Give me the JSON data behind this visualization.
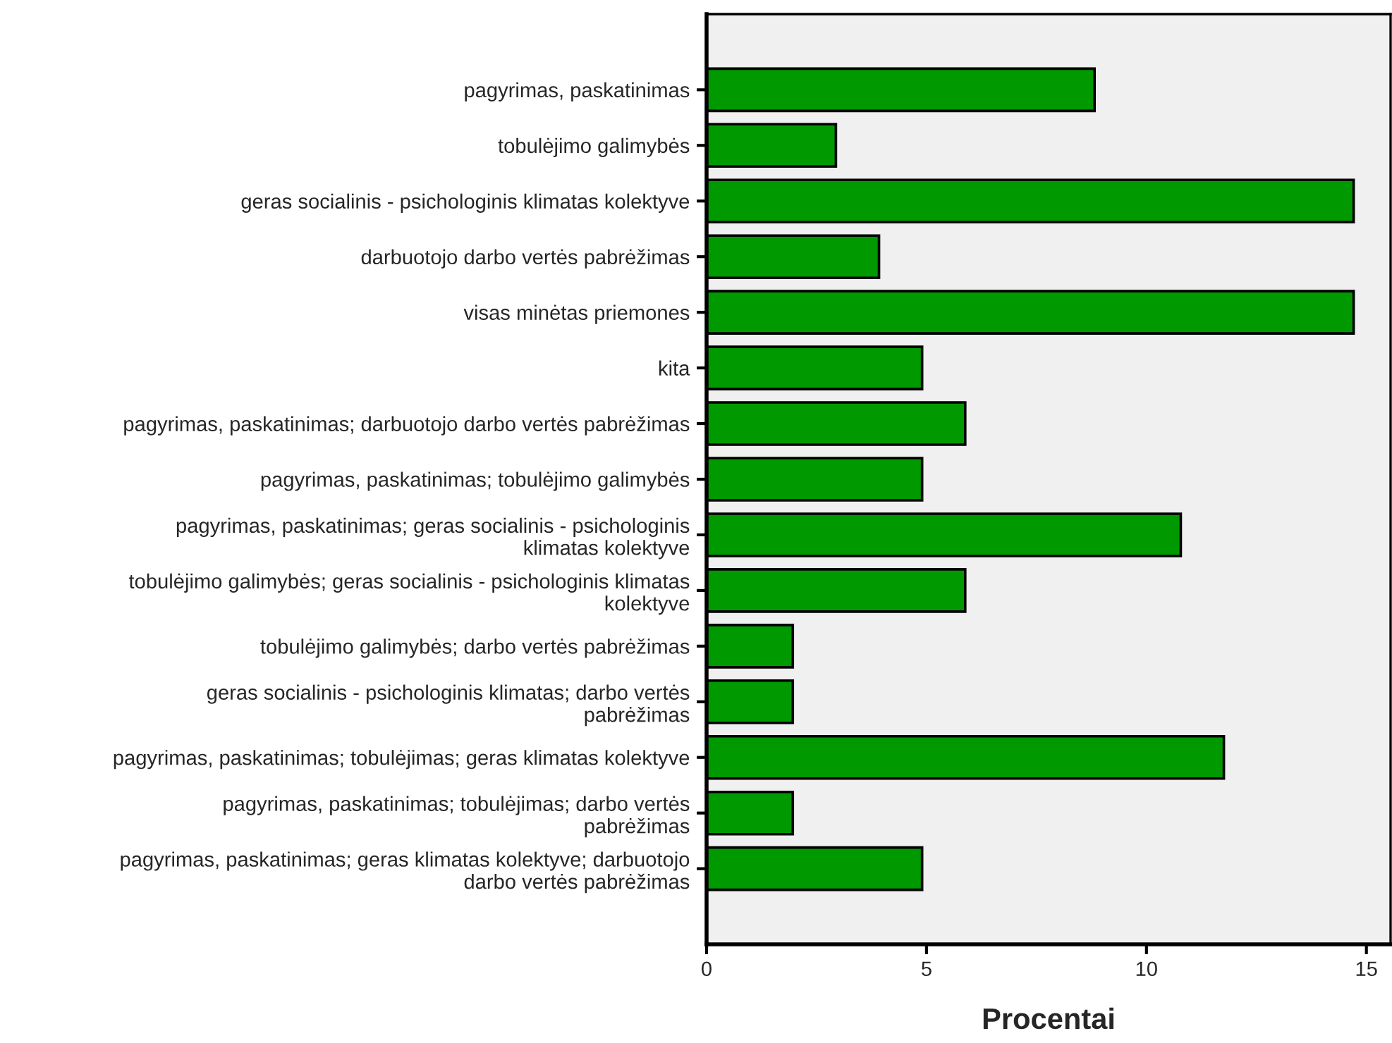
{
  "chart_data": {
    "type": "bar",
    "orientation": "horizontal",
    "xlabel": "Procentai",
    "categories": [
      "pagyrimas, paskatinimas",
      "tobulėjimo galimybės",
      "geras socialinis - psichologinis klimatas kolektyve",
      "darbuotojo darbo vertės pabrėžimas",
      "visas minėtas priemones",
      "kita",
      "pagyrimas, paskatinimas; darbuotojo darbo vertės pabrėžimas",
      "pagyrimas, paskatinimas; tobulėjimo galimybės",
      "pagyrimas, paskatinimas; geras socialinis - psichologinis\nklimatas kolektyve",
      "tobulėjimo galimybės; geras socialinis - psichologinis klimatas\nkolektyve",
      "tobulėjimo galimybės; darbo vertės pabrėžimas",
      "geras socialinis - psichologinis klimatas; darbo vertės\npabrėžimas",
      "pagyrimas, paskatinimas; tobulėjimas; geras klimatas kolektyve",
      "pagyrimas, paskatinimas; tobulėjimas; darbo vertės\npabrėžimas",
      "pagyrimas, paskatinimas; geras klimatas kolektyve; darbuotojo\ndarbo vertės pabrėžimas"
    ],
    "values": [
      8.82,
      2.94,
      14.71,
      3.92,
      14.71,
      4.9,
      5.88,
      4.9,
      10.78,
      5.88,
      1.96,
      1.96,
      11.76,
      1.96,
      4.9
    ],
    "color": "#009900",
    "xlim": [
      0,
      15.55
    ],
    "xticks": [
      0,
      5,
      10,
      15
    ],
    "grid": false,
    "legend": false
  }
}
